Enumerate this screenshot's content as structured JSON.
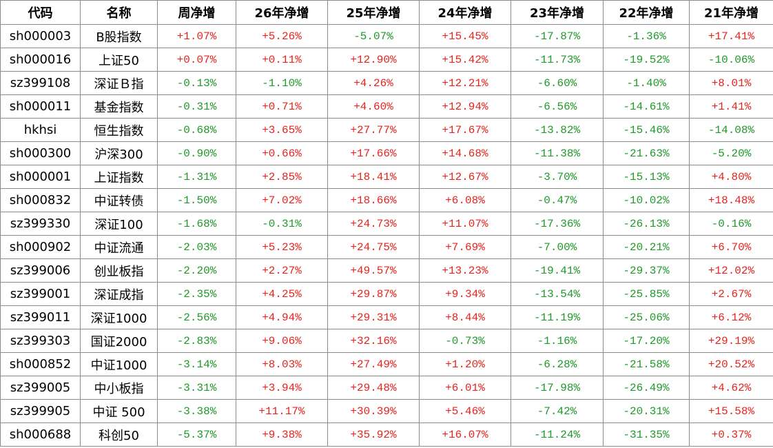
{
  "table": {
    "header": [
      "代码",
      "名称",
      "周净增",
      "26年净增",
      "25年净增",
      "24年净增",
      "23年净增",
      "22年净增",
      "21年净增"
    ],
    "up_color": "#e8231c",
    "down_color": "#1e9a28",
    "rows": [
      [
        "sh000003",
        "B股指数",
        "+1.07%",
        "+5.26%",
        "-5.07%",
        "+15.45%",
        "-17.87%",
        "-1.36%",
        "+17.41%"
      ],
      [
        "sh000016",
        "上证50",
        "+0.07%",
        "+0.11%",
        "+12.90%",
        "+15.42%",
        "-11.73%",
        "-19.52%",
        "-10.06%"
      ],
      [
        "sz399108",
        "深证Ｂ指",
        "-0.13%",
        "-1.10%",
        "+4.26%",
        "+12.21%",
        "-6.60%",
        "-1.40%",
        "+8.01%"
      ],
      [
        "sh000011",
        "基金指数",
        "-0.31%",
        "+0.71%",
        "+4.60%",
        "+12.94%",
        "-6.56%",
        "-14.61%",
        "+1.41%"
      ],
      [
        "hkhsi",
        "恒生指数",
        "-0.68%",
        "+3.65%",
        "+27.77%",
        "+17.67%",
        "-13.82%",
        "-15.46%",
        "-14.08%"
      ],
      [
        "sh000300",
        "沪深300",
        "-0.90%",
        "+0.66%",
        "+17.66%",
        "+14.68%",
        "-11.38%",
        "-21.63%",
        "-5.20%"
      ],
      [
        "sh000001",
        "上证指数",
        "-1.31%",
        "+2.85%",
        "+18.41%",
        "+12.67%",
        "-3.70%",
        "-15.13%",
        "+4.80%"
      ],
      [
        "sh000832",
        "中证转债",
        "-1.50%",
        "+7.02%",
        "+18.66%",
        "+6.08%",
        "-0.47%",
        "-10.02%",
        "+18.48%"
      ],
      [
        "sz399330",
        "深证100",
        "-1.68%",
        "-0.31%",
        "+24.73%",
        "+11.07%",
        "-17.36%",
        "-26.13%",
        "-0.16%"
      ],
      [
        "sh000902",
        "中证流通",
        "-2.03%",
        "+5.23%",
        "+24.75%",
        "+7.69%",
        "-7.00%",
        "-20.21%",
        "+6.70%"
      ],
      [
        "sz399006",
        "创业板指",
        "-2.20%",
        "+2.27%",
        "+49.57%",
        "+13.23%",
        "-19.41%",
        "-29.37%",
        "+12.02%"
      ],
      [
        "sz399001",
        "深证成指",
        "-2.35%",
        "+4.25%",
        "+29.87%",
        "+9.34%",
        "-13.54%",
        "-25.85%",
        "+2.67%"
      ],
      [
        "sz399011",
        "深证1000",
        "-2.56%",
        "+4.94%",
        "+29.31%",
        "+8.44%",
        "-11.19%",
        "-25.06%",
        "+6.12%"
      ],
      [
        "sz399303",
        "国证2000",
        "-2.83%",
        "+9.06%",
        "+32.16%",
        "-0.73%",
        "-1.16%",
        "-17.20%",
        "+29.19%"
      ],
      [
        "sh000852",
        "中证1000",
        "-3.14%",
        "+8.03%",
        "+27.49%",
        "+1.20%",
        "-6.28%",
        "-21.58%",
        "+20.52%"
      ],
      [
        "sz399005",
        "中小板指",
        "-3.31%",
        "+3.94%",
        "+29.48%",
        "+6.01%",
        "-17.98%",
        "-26.49%",
        "+4.62%"
      ],
      [
        "sz399905",
        "中证 500",
        "-3.38%",
        "+11.17%",
        "+30.39%",
        "+5.46%",
        "-7.42%",
        "-20.31%",
        "+15.58%"
      ],
      [
        "sh000688",
        "科创50",
        "-5.37%",
        "+9.38%",
        "+35.92%",
        "+16.07%",
        "-11.24%",
        "-31.35%",
        "+0.37%"
      ]
    ]
  }
}
